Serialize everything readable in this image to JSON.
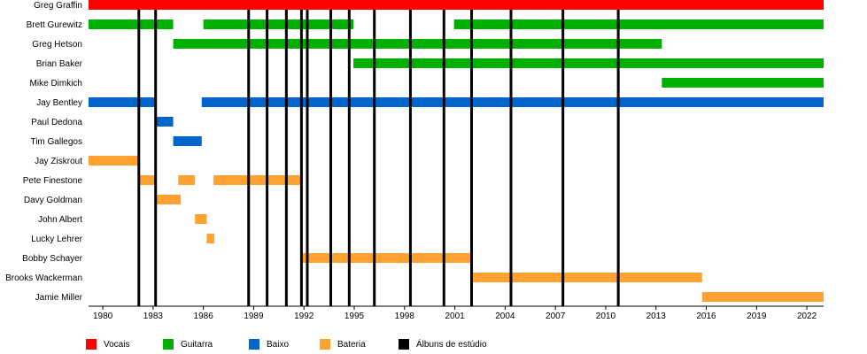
{
  "chart_data": {
    "type": "timeline",
    "x_range": [
      1979.15,
      2023.0
    ],
    "x_ticks": [
      {
        "value": 1980,
        "label": "1980"
      },
      {
        "value": 1983,
        "label": "1983"
      },
      {
        "value": 1986,
        "label": "1986"
      },
      {
        "value": 1989,
        "label": "1989"
      },
      {
        "value": 1992,
        "label": "1992"
      },
      {
        "value": 1995,
        "label": "1995"
      },
      {
        "value": 1998,
        "label": "1998"
      },
      {
        "value": 2001,
        "label": "2001"
      },
      {
        "value": 2004,
        "label": "2004"
      },
      {
        "value": 2007,
        "label": "2007"
      },
      {
        "value": 2010,
        "label": "2010"
      },
      {
        "value": 2013,
        "label": "2013"
      },
      {
        "value": 2016,
        "label": "2016"
      },
      {
        "value": 2019,
        "label": "2019"
      },
      {
        "value": 2022,
        "label": "2022"
      }
    ],
    "roles": [
      {
        "id": "vocais",
        "label": "Vocais",
        "color": "#ff0000"
      },
      {
        "id": "guitarra",
        "label": "Guitarra",
        "color": "#00b000"
      },
      {
        "id": "baixo",
        "label": "Baixo",
        "color": "#0066cc"
      },
      {
        "id": "bateria",
        "label": "Bateria",
        "color": "#ffa232"
      }
    ],
    "albums_legend": {
      "label": "Álbuns de estúdio",
      "color": "#000000"
    },
    "members": [
      {
        "name": "Greg Graffin",
        "periods": [
          {
            "role": "vocais",
            "start": 1979.15,
            "end": 2023.0
          }
        ]
      },
      {
        "name": "Brett Gurewitz",
        "periods": [
          {
            "role": "guitarra",
            "start": 1979.15,
            "end": 1984.2
          },
          {
            "role": "guitarra",
            "start": 1986.0,
            "end": 1994.95
          },
          {
            "role": "guitarra",
            "start": 2000.95,
            "end": 2023.0
          }
        ]
      },
      {
        "name": "Greg Hetson",
        "periods": [
          {
            "role": "guitarra",
            "start": 1984.2,
            "end": 2013.35
          }
        ]
      },
      {
        "name": "Brian Baker",
        "periods": [
          {
            "role": "guitarra",
            "start": 1994.95,
            "end": 2023.0
          }
        ]
      },
      {
        "name": "Mike Dimkich",
        "periods": [
          {
            "role": "guitarra",
            "start": 2013.35,
            "end": 2023.0
          }
        ]
      },
      {
        "name": "Jay Bentley",
        "periods": [
          {
            "role": "baixo",
            "start": 1979.15,
            "end": 1983.1
          },
          {
            "role": "baixo",
            "start": 1985.9,
            "end": 2023.0
          }
        ]
      },
      {
        "name": "Paul Dedona",
        "periods": [
          {
            "role": "baixo",
            "start": 1983.1,
            "end": 1984.2
          }
        ]
      },
      {
        "name": "Tim Gallegos",
        "periods": [
          {
            "role": "baixo",
            "start": 1984.2,
            "end": 1985.9
          }
        ]
      },
      {
        "name": "Jay Ziskrout",
        "periods": [
          {
            "role": "bateria",
            "start": 1979.15,
            "end": 1982.15
          }
        ]
      },
      {
        "name": "Pete Finestone",
        "periods": [
          {
            "role": "bateria",
            "start": 1982.15,
            "end": 1983.1
          },
          {
            "role": "bateria",
            "start": 1984.5,
            "end": 1985.5
          },
          {
            "role": "bateria",
            "start": 1986.6,
            "end": 1991.85
          }
        ]
      },
      {
        "name": "Davy Goldman",
        "periods": [
          {
            "role": "bateria",
            "start": 1983.1,
            "end": 1984.65
          }
        ]
      },
      {
        "name": "John Albert",
        "periods": [
          {
            "role": "bateria",
            "start": 1985.5,
            "end": 1986.2
          }
        ]
      },
      {
        "name": "Lucky Lehrer",
        "periods": [
          {
            "role": "bateria",
            "start": 1986.2,
            "end": 1986.65
          }
        ]
      },
      {
        "name": "Bobby Schayer",
        "periods": [
          {
            "role": "bateria",
            "start": 1991.85,
            "end": 2001.95
          }
        ]
      },
      {
        "name": "Brooks Wackerman",
        "periods": [
          {
            "role": "bateria",
            "start": 2001.95,
            "end": 2015.75
          }
        ]
      },
      {
        "name": "Jamie Miller",
        "periods": [
          {
            "role": "bateria",
            "start": 2015.75,
            "end": 2023.0
          }
        ]
      }
    ],
    "album_years": [
      1982.15,
      1983.15,
      1988.7,
      1989.8,
      1990.95,
      1991.85,
      1992.2,
      1993.6,
      1994.7,
      1996.2,
      1998.35,
      2000.35,
      2002.0,
      2004.35,
      2007.45,
      2010.75
    ],
    "grid": true,
    "legend_position": "bottom"
  }
}
